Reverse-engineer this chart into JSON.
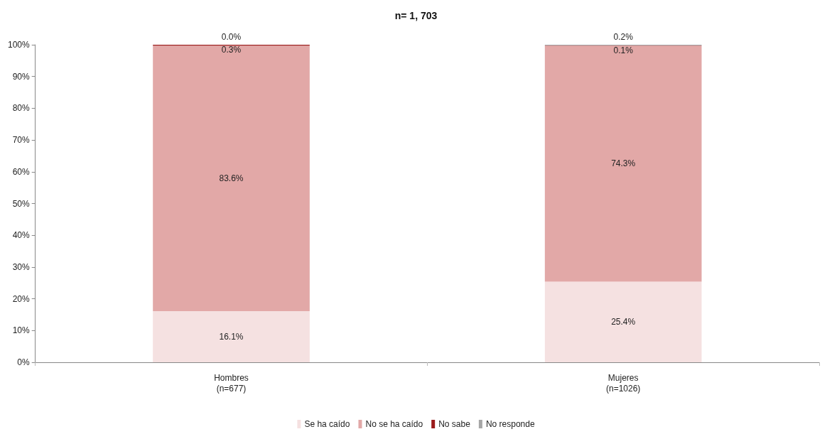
{
  "chart_data": {
    "type": "bar",
    "title": "n= 1, 703",
    "stacked": true,
    "categories": [
      "Hombres\n(n=677)",
      "Mujeres\n(n=1026)"
    ],
    "series": [
      {
        "name": "Se ha caído",
        "color": "#f5e1e1",
        "values": [
          16.1,
          25.4
        ],
        "value_labels": [
          "16.1%",
          "25.4%"
        ]
      },
      {
        "name": "No se ha caído",
        "color": "#e2a8a7",
        "values": [
          83.6,
          74.3
        ],
        "value_labels": [
          "83.6%",
          "74.3%"
        ]
      },
      {
        "name": "No sabe",
        "color": "#9b1b1b",
        "values": [
          0.3,
          0.1
        ],
        "value_labels": [
          "0.3%",
          "0.1%"
        ]
      },
      {
        "name": "No responde",
        "color": "#a6a6a6",
        "values": [
          0.0,
          0.2
        ],
        "value_labels": [
          "0.0%",
          "0.2%"
        ]
      }
    ],
    "ylim": [
      0,
      100
    ],
    "yticks": [
      {
        "value": 0,
        "label": "0%"
      },
      {
        "value": 10,
        "label": "10%"
      },
      {
        "value": 20,
        "label": "20%"
      },
      {
        "value": 30,
        "label": "30%"
      },
      {
        "value": 40,
        "label": "40%"
      },
      {
        "value": 50,
        "label": "50%"
      },
      {
        "value": 60,
        "label": "60%"
      },
      {
        "value": 70,
        "label": "70%"
      },
      {
        "value": 80,
        "label": "80%"
      },
      {
        "value": 90,
        "label": "90%"
      },
      {
        "value": 100,
        "label": "100%"
      }
    ],
    "grid": false,
    "legend": "bottom"
  }
}
